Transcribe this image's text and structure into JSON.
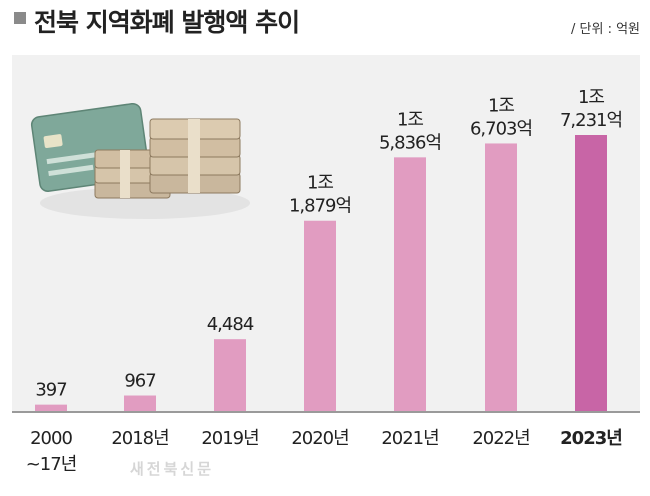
{
  "header": {
    "title": "전북 지역화폐 발행액 추이",
    "unit": "/ 단위 : 억원"
  },
  "watermark": "새전북신문",
  "colors": {
    "bar": "#e19cc1",
    "bar_highlight": "#c865a6",
    "panel": "#f1f1f1"
  },
  "chart_data": {
    "type": "bar",
    "title": "전북 지역화폐 발행액 추이",
    "unit": "억원",
    "xlabel": "",
    "ylabel": "",
    "categories": [
      "2000\n~17년",
      "2018년",
      "2019년",
      "2020년",
      "2021년",
      "2022년",
      "2023년"
    ],
    "values": [
      397,
      967,
      4484,
      11879,
      15836,
      16703,
      17231
    ],
    "value_labels": [
      "397",
      "967",
      "4,484",
      "1조\n1,879억",
      "1조\n5,836억",
      "1조\n6,703억",
      "1조\n7,231억"
    ],
    "highlight_index": 6,
    "ylim": [
      0,
      17231
    ],
    "grid": false,
    "legend": "none"
  }
}
